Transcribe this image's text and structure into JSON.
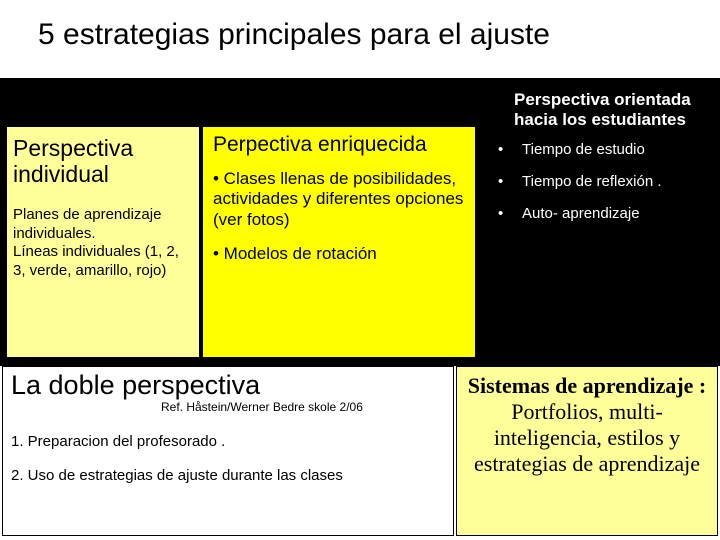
{
  "title": "5 estrategias principales para el ajuste",
  "colors": {
    "background": "#ffffff",
    "black_box": "#000000",
    "light_yellow": "#ffff99",
    "yellow": "#ffff00",
    "text": "#000000",
    "text_inverse": "#ffffff"
  },
  "left": {
    "title": "Perspectiva individual",
    "body": "Planes de aprendizaje individuales.\nLíneas individuales (1, 2, 3, verde, amarillo, rojo)"
  },
  "mid": {
    "title": "Perpectiva enriquecida",
    "bullet1": "• Clases llenas de posibilidades, actividades y diferentes opciones (ver fotos)",
    "bullet2": "• Modelos de rotación"
  },
  "right": {
    "title": "Perspectiva orientada hacia los estudiantes",
    "items": [
      "Tiempo de estudio",
      "Tiempo de reflexión .",
      "Auto- aprendizaje"
    ]
  },
  "bottom_left": {
    "title": "La doble perspectiva",
    "ref": "Ref. Håstein/Werner Bedre skole 2/06",
    "items": [
      "1.  Preparacion del profesorado .",
      "2.  Uso de estrategias de ajuste durante las clases"
    ]
  },
  "bottom_right": {
    "bold": "Sistemas de aprendizaje :",
    "rest": " Portfolios, multi-inteligencia, estilos y estrategias de aprendizaje"
  }
}
